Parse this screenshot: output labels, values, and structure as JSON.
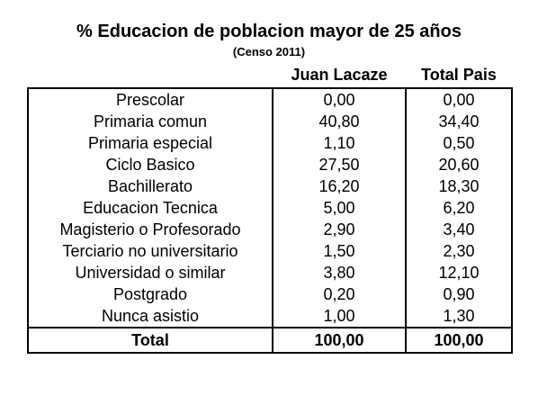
{
  "header": {
    "title": "% Educacion de poblacion mayor de 25 años",
    "subtitle": "(Censo 2011)"
  },
  "table": {
    "columns": [
      "Juan Lacaze",
      "Total Pais"
    ],
    "rows": [
      [
        "Prescolar",
        "0,00",
        "0,00"
      ],
      [
        "Primaria comun",
        "40,80",
        "34,40"
      ],
      [
        "Primaria especial",
        "1,10",
        "0,50"
      ],
      [
        "Ciclo Basico",
        "27,50",
        "20,60"
      ],
      [
        "Bachillerato",
        "16,20",
        "18,30"
      ],
      [
        "Educacion Tecnica",
        "5,00",
        "6,20"
      ],
      [
        "Magisterio o Profesorado",
        "2,90",
        "3,40"
      ],
      [
        "Terciario no universitario",
        "1,50",
        "2,30"
      ],
      [
        "Universidad o similar",
        "3,80",
        "12,10"
      ],
      [
        "Postgrado",
        "0,20",
        "0,90"
      ],
      [
        "Nunca asistio",
        "1,00",
        "1,30"
      ]
    ],
    "total": [
      "Total",
      "100,00",
      "100,00"
    ]
  }
}
